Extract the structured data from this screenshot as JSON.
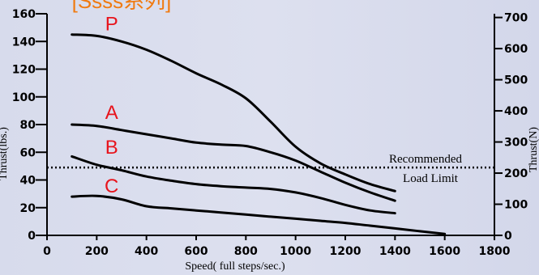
{
  "page": {
    "title": "[Ssss系列]"
  },
  "chart_data": {
    "type": "line",
    "xlabel": "Speed( full steps/sec.)",
    "ylabel": "Thrust(lbs.)",
    "y2label": "Thrust(N)",
    "xlim": [
      0,
      1800
    ],
    "ylim": [
      0,
      160
    ],
    "y2lim": [
      0,
      712
    ],
    "x_ticks": [
      0,
      200,
      400,
      600,
      800,
      1000,
      1200,
      1400,
      1600,
      1800
    ],
    "y_ticks": [
      0,
      20,
      40,
      60,
      80,
      100,
      120,
      140,
      160
    ],
    "y2_ticks": [
      0,
      100,
      200,
      300,
      400,
      500,
      600,
      700
    ],
    "grid": false,
    "series": [
      {
        "name": "P",
        "color": "#000000",
        "x": [
          100,
          200,
          300,
          400,
          500,
          600,
          700,
          800,
          900,
          1000,
          1100,
          1200,
          1300,
          1400
        ],
        "y": [
          145,
          144,
          140,
          134,
          126,
          117,
          109,
          99,
          82,
          64,
          52,
          44,
          37,
          32
        ]
      },
      {
        "name": "A",
        "color": "#000000",
        "x": [
          100,
          200,
          300,
          400,
          500,
          600,
          700,
          800,
          900,
          1000,
          1100,
          1200,
          1300,
          1400
        ],
        "y": [
          80,
          79,
          76,
          73,
          70,
          67,
          65.5,
          64.5,
          60,
          54,
          46,
          38,
          31,
          25
        ]
      },
      {
        "name": "B",
        "color": "#000000",
        "x": [
          100,
          200,
          300,
          400,
          500,
          600,
          700,
          800,
          900,
          1000,
          1100,
          1200,
          1300,
          1400
        ],
        "y": [
          57,
          51,
          47,
          42.5,
          39.5,
          37,
          35.5,
          34.5,
          33.5,
          31,
          27,
          22,
          18,
          16
        ]
      },
      {
        "name": "C",
        "color": "#000000",
        "x": [
          100,
          200,
          300,
          400,
          500,
          600,
          700,
          800,
          900,
          1000,
          1100,
          1200,
          1300,
          1400,
          1500,
          1600
        ],
        "y": [
          28,
          28.5,
          26,
          21,
          19.5,
          18,
          16.5,
          15,
          13.5,
          12,
          10.5,
          9,
          7,
          5,
          3,
          1
        ]
      }
    ],
    "reference_line": {
      "y": 49,
      "style": "dotted",
      "label_lines": [
        "Recommended",
        "Load Limit"
      ]
    }
  }
}
